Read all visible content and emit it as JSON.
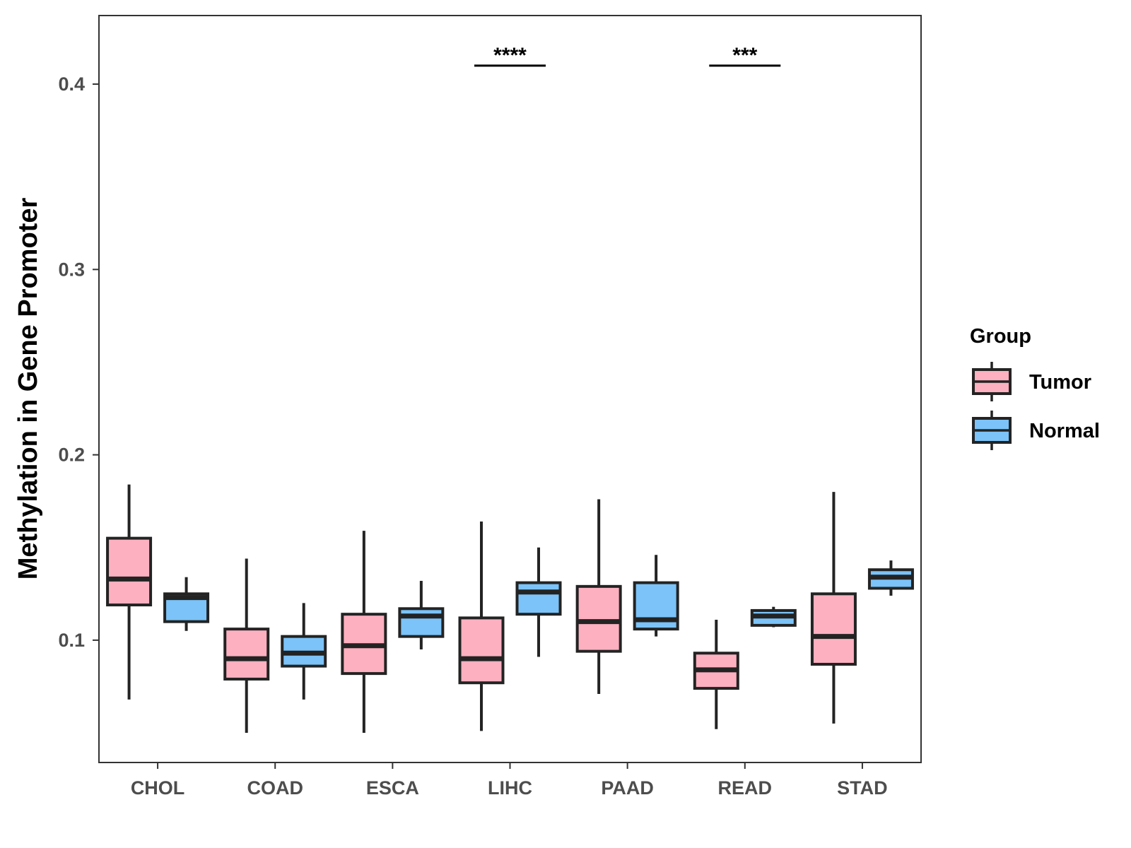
{
  "chart_data": {
    "type": "boxplot",
    "title": "",
    "xlabel": "",
    "ylabel": "Methylation in Gene Promoter",
    "ylim": [
      0.034,
      0.437
    ],
    "yticks": [
      0.1,
      0.2,
      0.3,
      0.4
    ],
    "ytick_labels": [
      "0.1",
      "0.2",
      "0.3",
      "0.4"
    ],
    "categories": [
      "CHOL",
      "COAD",
      "ESCA",
      "LIHC",
      "PAAD",
      "READ",
      "STAD"
    ],
    "legend": {
      "title": "Group",
      "position": "right",
      "items": [
        {
          "name": "Tumor",
          "color": "#FDB0C0"
        },
        {
          "name": "Normal",
          "color": "#7BC3F8"
        }
      ]
    },
    "series": [
      {
        "name": "Tumor",
        "color": "#FDB0C0",
        "boxes": [
          {
            "category": "CHOL",
            "min": 0.068,
            "q1": 0.119,
            "median": 0.133,
            "q3": 0.155,
            "max": 0.184
          },
          {
            "category": "COAD",
            "min": 0.05,
            "q1": 0.079,
            "median": 0.09,
            "q3": 0.106,
            "max": 0.144
          },
          {
            "category": "ESCA",
            "min": 0.05,
            "q1": 0.082,
            "median": 0.097,
            "q3": 0.114,
            "max": 0.159
          },
          {
            "category": "LIHC",
            "min": 0.051,
            "q1": 0.077,
            "median": 0.09,
            "q3": 0.112,
            "max": 0.164
          },
          {
            "category": "PAAD",
            "min": 0.071,
            "q1": 0.094,
            "median": 0.11,
            "q3": 0.129,
            "max": 0.176
          },
          {
            "category": "READ",
            "min": 0.052,
            "q1": 0.074,
            "median": 0.084,
            "q3": 0.093,
            "max": 0.111
          },
          {
            "category": "STAD",
            "min": 0.055,
            "q1": 0.087,
            "median": 0.102,
            "q3": 0.125,
            "max": 0.18
          }
        ]
      },
      {
        "name": "Normal",
        "color": "#7BC3F8",
        "boxes": [
          {
            "category": "CHOL",
            "min": 0.105,
            "q1": 0.11,
            "median": 0.123,
            "q3": 0.125,
            "max": 0.134
          },
          {
            "category": "COAD",
            "min": 0.068,
            "q1": 0.086,
            "median": 0.093,
            "q3": 0.102,
            "max": 0.12
          },
          {
            "category": "ESCA",
            "min": 0.095,
            "q1": 0.102,
            "median": 0.113,
            "q3": 0.117,
            "max": 0.132
          },
          {
            "category": "LIHC",
            "min": 0.091,
            "q1": 0.114,
            "median": 0.126,
            "q3": 0.131,
            "max": 0.15
          },
          {
            "category": "PAAD",
            "min": 0.102,
            "q1": 0.106,
            "median": 0.111,
            "q3": 0.131,
            "max": 0.146
          },
          {
            "category": "READ",
            "min": 0.107,
            "q1": 0.108,
            "median": 0.113,
            "q3": 0.116,
            "max": 0.118
          },
          {
            "category": "STAD",
            "min": 0.124,
            "q1": 0.128,
            "median": 0.134,
            "q3": 0.138,
            "max": 0.143
          }
        ]
      }
    ],
    "annotations": [
      {
        "category": "LIHC",
        "label": "****",
        "y": 0.41
      },
      {
        "category": "READ",
        "label": "***",
        "y": 0.41
      }
    ],
    "colors": {
      "outline": "#232323",
      "panel_border": "#333333",
      "tick_text": "#4d4d4d"
    }
  }
}
